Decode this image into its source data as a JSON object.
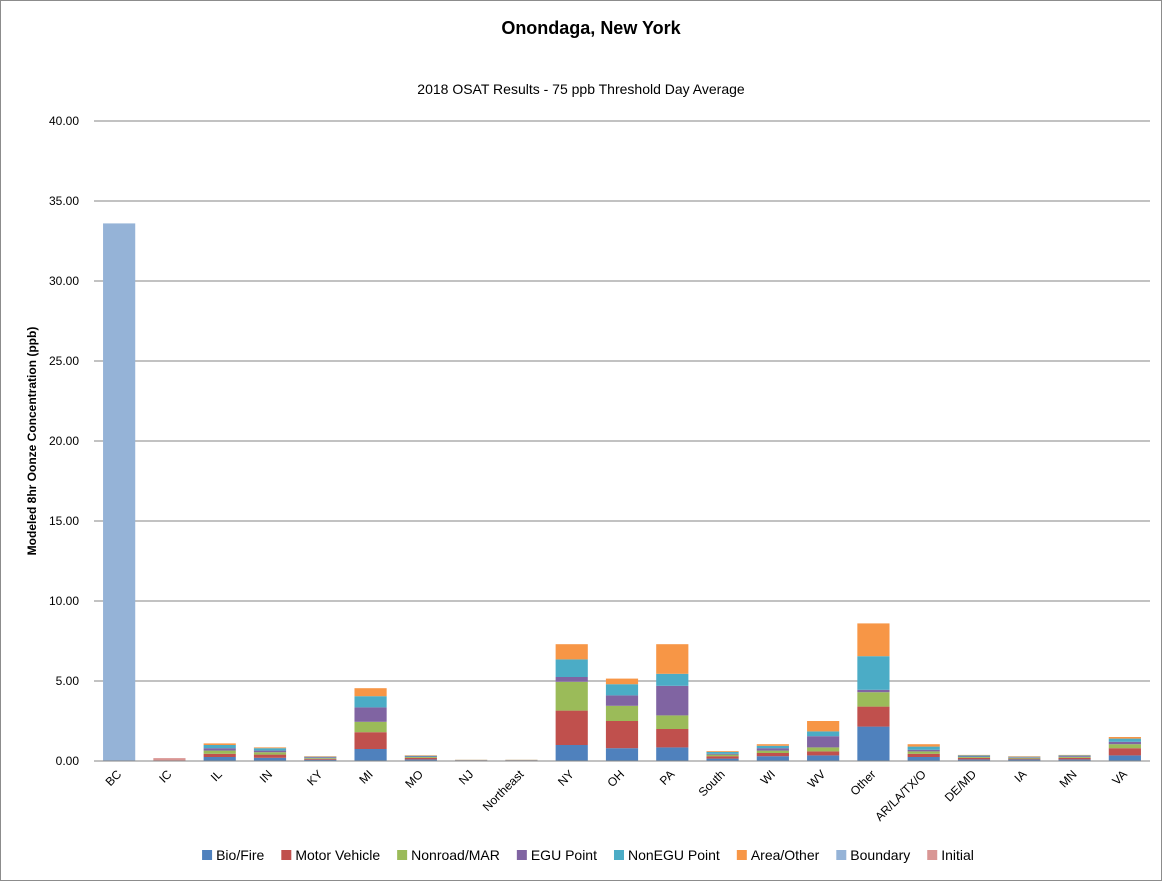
{
  "chart_data": {
    "type": "bar",
    "stacked": true,
    "title": "Onondaga, New York",
    "subtitle": "2018 OSAT Results - 75 ppb Threshold Day Average",
    "ylabel": "Modeled 8hr Oonze Concentration (ppb)",
    "xlabel": "",
    "ylim": [
      0,
      40
    ],
    "yticks": [
      "0.00",
      "5.00",
      "10.00",
      "15.00",
      "20.00",
      "25.00",
      "30.00",
      "35.00",
      "40.00"
    ],
    "grid": true,
    "legend_position": "bottom",
    "categories": [
      "BC",
      "IC",
      "IL",
      "IN",
      "KY",
      "MI",
      "MO",
      "NJ",
      "Northeast",
      "NY",
      "OH",
      "PA",
      "South",
      "WI",
      "WV",
      "Other",
      "AR/LA/TX/O",
      "DE/MD",
      "IA",
      "MN",
      "VA"
    ],
    "series": [
      {
        "name": "Bio/Fire",
        "color": "#4f81bd",
        "values": [
          0,
          0,
          0.25,
          0.2,
          0.08,
          0.75,
          0.1,
          0.02,
          0.02,
          1.0,
          0.8,
          0.85,
          0.15,
          0.3,
          0.35,
          2.15,
          0.25,
          0.1,
          0.1,
          0.1,
          0.35
        ]
      },
      {
        "name": "Motor Vehicle",
        "color": "#c0504d",
        "values": [
          0,
          0,
          0.2,
          0.2,
          0.05,
          1.05,
          0.1,
          0.02,
          0.02,
          2.15,
          1.7,
          1.15,
          0.15,
          0.2,
          0.25,
          1.25,
          0.2,
          0.1,
          0.05,
          0.1,
          0.45
        ]
      },
      {
        "name": "Nonroad/MAR",
        "color": "#9bbb59",
        "values": [
          0,
          0,
          0.2,
          0.15,
          0.05,
          0.65,
          0.05,
          0.01,
          0.01,
          1.8,
          0.95,
          0.85,
          0.1,
          0.15,
          0.25,
          0.9,
          0.15,
          0.05,
          0.05,
          0.05,
          0.25
        ]
      },
      {
        "name": "EGU Point",
        "color": "#8064a2",
        "values": [
          0,
          0,
          0.15,
          0.1,
          0.05,
          0.9,
          0.03,
          0.01,
          0.01,
          0.3,
          0.65,
          1.85,
          0.05,
          0.15,
          0.7,
          0.15,
          0.1,
          0.03,
          0.03,
          0.05,
          0.15
        ]
      },
      {
        "name": "NonEGU Point",
        "color": "#4bacc6",
        "values": [
          0,
          0,
          0.2,
          0.15,
          0.04,
          0.7,
          0.05,
          0.01,
          0.01,
          1.1,
          0.7,
          0.75,
          0.12,
          0.15,
          0.3,
          2.1,
          0.2,
          0.07,
          0.04,
          0.05,
          0.2
        ]
      },
      {
        "name": "Area/Other",
        "color": "#f79646",
        "values": [
          0,
          0,
          0.1,
          0.05,
          0.03,
          0.5,
          0.03,
          0.01,
          0.01,
          0.95,
          0.35,
          1.85,
          0.05,
          0.1,
          0.65,
          2.05,
          0.15,
          0.03,
          0.03,
          0.03,
          0.1
        ]
      },
      {
        "name": "Boundary",
        "color": "#95b3d7",
        "values": [
          33.6,
          0,
          0,
          0,
          0,
          0,
          0,
          0,
          0,
          0,
          0,
          0,
          0,
          0,
          0,
          0,
          0,
          0,
          0,
          0,
          0
        ]
      },
      {
        "name": "Initial",
        "color": "#d99694",
        "values": [
          0,
          0.18,
          0,
          0,
          0,
          0,
          0,
          0,
          0,
          0,
          0,
          0,
          0,
          0,
          0,
          0,
          0,
          0,
          0,
          0,
          0
        ]
      }
    ]
  }
}
